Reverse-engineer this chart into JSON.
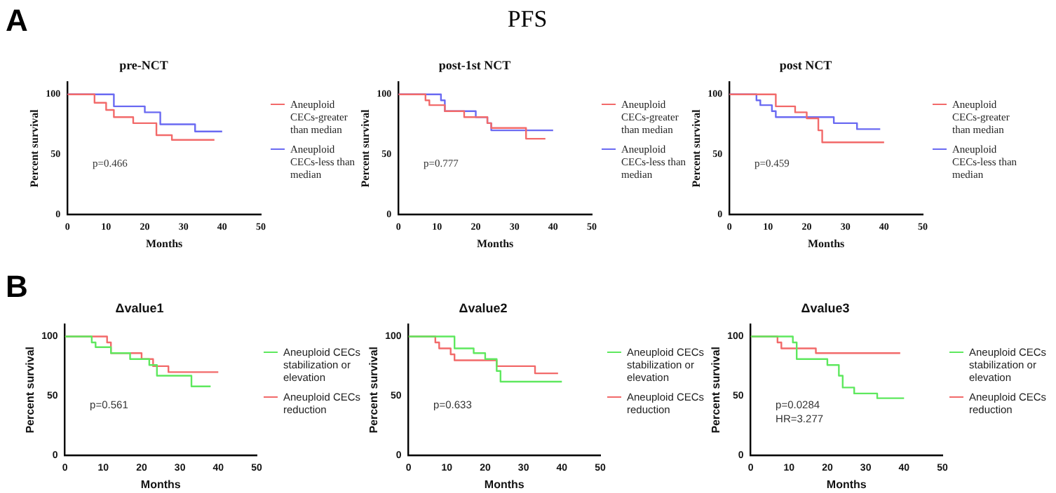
{
  "chart_data": [
    {
      "type": "step",
      "title": "pre-NCT",
      "xlabel": "Months",
      "ylabel": "Percent survival",
      "xlim": [
        0,
        50
      ],
      "xticks": [
        0,
        10,
        20,
        30,
        40,
        50
      ],
      "ylim": [
        0,
        110
      ],
      "yticks": [
        0,
        50,
        100
      ],
      "legend": "right",
      "marker": "none",
      "annotations": [
        "A",
        "p=0.466"
      ],
      "series": [
        {
          "name": "Aneuploid CECs-greater than median",
          "color": "#f26a6a",
          "x": [
            0,
            7,
            10,
            12,
            17,
            23,
            27,
            38
          ],
          "values": [
            100,
            93,
            87,
            81,
            76,
            66,
            62,
            62
          ]
        },
        {
          "name": "Aneuploid CECs-less than median",
          "color": "#6a6af2",
          "x": [
            0,
            12,
            20,
            24,
            33,
            40
          ],
          "values": [
            100,
            90,
            85,
            75,
            69,
            69
          ]
        }
      ]
    },
    {
      "type": "step",
      "title": "post-1st NCT",
      "xlabel": "Months",
      "ylabel": "Percent survival",
      "xlim": [
        0,
        50
      ],
      "xticks": [
        0,
        10,
        20,
        30,
        40,
        50
      ],
      "ylim": [
        0,
        110
      ],
      "yticks": [
        0,
        50,
        100
      ],
      "legend": "right",
      "marker": "none",
      "annotations": [
        "PFS",
        "p=0.777"
      ],
      "series": [
        {
          "name": "Aneuploid CECs-greater than median",
          "color": "#f26a6a",
          "x": [
            0,
            7,
            8,
            12,
            17,
            23,
            24,
            33,
            38
          ],
          "values": [
            100,
            95,
            91,
            86,
            81,
            76,
            72,
            63,
            63
          ]
        },
        {
          "name": "Aneuploid CECs-less than median",
          "color": "#6a6af2",
          "x": [
            0,
            11,
            12,
            20,
            23,
            24,
            40
          ],
          "values": [
            100,
            95,
            86,
            81,
            76,
            70,
            70
          ]
        }
      ]
    },
    {
      "type": "step",
      "title": "post NCT",
      "xlabel": "Months",
      "ylabel": "Percent survival",
      "xlim": [
        0,
        50
      ],
      "xticks": [
        0,
        10,
        20,
        30,
        40,
        50
      ],
      "ylim": [
        0,
        110
      ],
      "yticks": [
        0,
        50,
        100
      ],
      "legend": "right",
      "marker": "none",
      "annotations": [
        "p=0.459"
      ],
      "series": [
        {
          "name": "Aneuploid CECs-greater than median",
          "color": "#f26a6a",
          "x": [
            0,
            12,
            17,
            20,
            23,
            24,
            40
          ],
          "values": [
            100,
            90,
            85,
            80,
            70,
            60,
            60
          ]
        },
        {
          "name": "Aneuploid CECs-less than median",
          "color": "#6a6af2",
          "x": [
            0,
            7,
            8,
            11,
            12,
            27,
            33,
            39
          ],
          "values": [
            100,
            95,
            91,
            86,
            81,
            76,
            71,
            71
          ]
        }
      ]
    },
    {
      "type": "step",
      "title": "Δvalue1",
      "xlabel": "Months",
      "ylabel": "Percent survival",
      "xlim": [
        0,
        50
      ],
      "xticks": [
        0,
        10,
        20,
        30,
        40,
        50
      ],
      "ylim": [
        0,
        110
      ],
      "yticks": [
        0,
        50,
        100
      ],
      "legend": "right",
      "marker": "none",
      "annotations": [
        "B",
        "p=0.561"
      ],
      "series": [
        {
          "name": "Aneuploid CECs stabilization or elevation",
          "color": "#5ee85e",
          "x": [
            0,
            7,
            8,
            12,
            17,
            22,
            24,
            33,
            38
          ],
          "values": [
            100,
            95,
            91,
            86,
            81,
            76,
            67,
            58,
            58
          ]
        },
        {
          "name": "Aneuploid CECs reduction",
          "color": "#f26a6a",
          "x": [
            0,
            11,
            12,
            20,
            23,
            27,
            40
          ],
          "values": [
            100,
            95,
            86,
            81,
            75,
            70,
            70
          ]
        }
      ]
    },
    {
      "type": "step",
      "title": "Δvalue2",
      "xlabel": "Months",
      "ylabel": "Percent survival",
      "xlim": [
        0,
        50
      ],
      "xticks": [
        0,
        10,
        20,
        30,
        40,
        50
      ],
      "ylim": [
        0,
        110
      ],
      "yticks": [
        0,
        50,
        100
      ],
      "legend": "right",
      "marker": "none",
      "annotations": [
        "p=0.633"
      ],
      "series": [
        {
          "name": "Aneuploid CECs stabilization or elevation",
          "color": "#5ee85e",
          "x": [
            0,
            12,
            17,
            20,
            23,
            24,
            40
          ],
          "values": [
            100,
            90,
            86,
            81,
            71,
            62,
            62
          ]
        },
        {
          "name": "Aneuploid CECs reduction",
          "color": "#f26a6a",
          "x": [
            0,
            7,
            8,
            11,
            12,
            23,
            33,
            39
          ],
          "values": [
            100,
            95,
            90,
            85,
            80,
            75,
            69,
            69
          ]
        }
      ]
    },
    {
      "type": "step",
      "title": "Δvalue3",
      "xlabel": "Months",
      "ylabel": "Percent survival",
      "xlim": [
        0,
        50
      ],
      "xticks": [
        0,
        10,
        20,
        30,
        40,
        50
      ],
      "ylim": [
        0,
        110
      ],
      "yticks": [
        0,
        50,
        100
      ],
      "legend": "right",
      "marker": "none",
      "annotations": [
        "p=0.0284",
        "HR=3.277"
      ],
      "series": [
        {
          "name": "Aneuploid CECs stabilization or elevation",
          "color": "#5ee85e",
          "x": [
            0,
            11,
            12,
            20,
            23,
            24,
            27,
            33,
            40
          ],
          "values": [
            100,
            95,
            81,
            76,
            67,
            57,
            52,
            48,
            48
          ]
        },
        {
          "name": "Aneuploid CECs reduction",
          "color": "#f26a6a",
          "x": [
            0,
            7,
            8,
            17,
            39
          ],
          "values": [
            100,
            95,
            90,
            86,
            86
          ]
        }
      ]
    }
  ]
}
